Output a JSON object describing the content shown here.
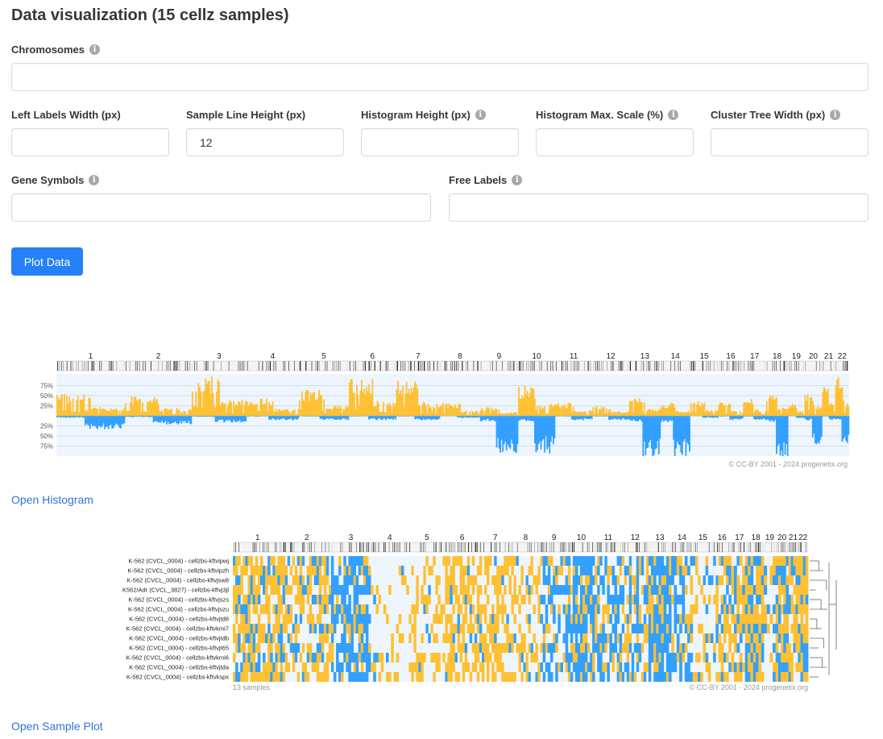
{
  "page": {
    "title": "Data visualization (15 cellz samples)"
  },
  "form": {
    "chromosomes": {
      "label": "Chromosomes",
      "value": ""
    },
    "left_labels_width": {
      "label": "Left Labels Width (px)",
      "value": ""
    },
    "sample_line_height": {
      "label": "Sample Line Height (px)",
      "value": "12"
    },
    "histogram_height": {
      "label": "Histogram Height (px)",
      "value": ""
    },
    "histogram_max_scale": {
      "label": "Histogram Max. Scale (%)",
      "value": ""
    },
    "cluster_tree_width": {
      "label": "Cluster Tree Width (px)",
      "value": ""
    },
    "gene_symbols": {
      "label": "Gene Symbols",
      "value": ""
    },
    "free_labels": {
      "label": "Free Labels",
      "value": ""
    },
    "plot_button": "Plot Data",
    "info_icon": "info-icon"
  },
  "histogram": {
    "chromosomes": [
      "1",
      "2",
      "3",
      "4",
      "5",
      "6",
      "7",
      "8",
      "9",
      "10",
      "11",
      "12",
      "13",
      "14",
      "15",
      "16",
      "17",
      "18",
      "19",
      "20",
      "21",
      "22"
    ],
    "gain_ticks": [
      "75%",
      "50%",
      "25%"
    ],
    "loss_ticks": [
      "25%",
      "50%",
      "75%"
    ],
    "copyright": "© CC-BY 2001 - 2024 progenetix.org",
    "gain_color": "#FFC133",
    "loss_color": "#33A0FF"
  },
  "open_histogram_link": "Open Histogram",
  "sample_plot": {
    "chromosomes": [
      "1",
      "2",
      "3",
      "4",
      "5",
      "6",
      "7",
      "8",
      "9",
      "10",
      "11",
      "12",
      "13",
      "14",
      "15",
      "16",
      "17",
      "18",
      "19",
      "20",
      "21",
      "22"
    ],
    "samples": [
      "K-562 (CVCL_0004) - cellzbs-kftvipwj",
      "K-562 (CVCL_0004) - cellzbs-kftvipzh",
      "K-562 (CVCL_0004) - cellzbs-kftvjsw8",
      "K562/Adr (CVCL_3827) - cellzbs-kftvj3jl",
      "K-562 (CVCL_0004) - cellzbs-kftvjszs",
      "K-562 (CVCL_0004) - cellzbs-kftvjszu",
      "K-562 (CVCL_0004) - cellzbs-kftvjtd8",
      "K-562 (CVCL_0004) - cellzbs-kftvkmi7",
      "K-562 (CVCL_0004) - cellzbs-kftvjtdb",
      "K-562 (CVCL_0004) - cellzbs-kftvjt65",
      "K-562 (CVCL_0004) - cellzbs-kftvkmi6",
      "K-562 (CVCL_0004) - cellzbs-kftvjtda",
      "K-562 (CVCL_0004) - cellzbs-kftvkspx"
    ],
    "sample_count": "13 samples",
    "copyright": "© CC-BY 2001 - 2024 progenetix.org"
  },
  "open_sample_plot_link": "Open Sample Plot"
}
